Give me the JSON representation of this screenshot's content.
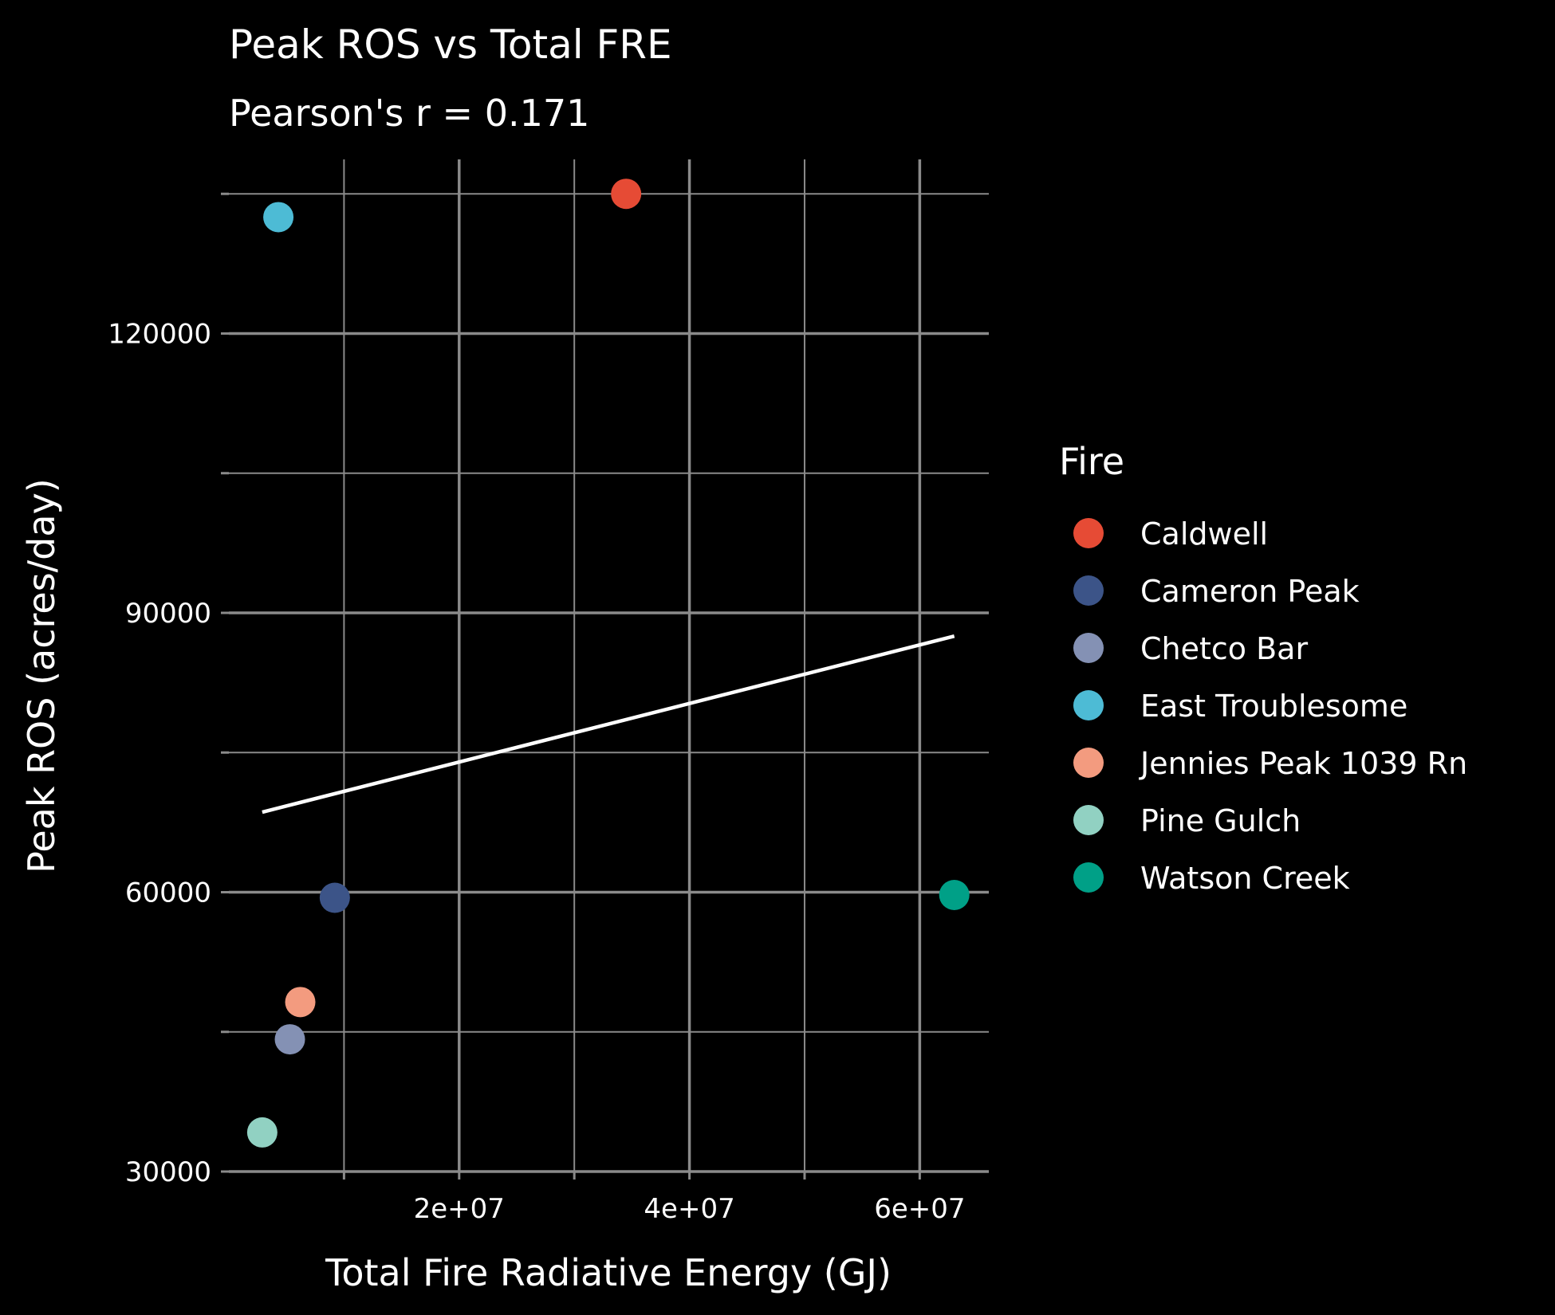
{
  "chart_data": {
    "type": "scatter",
    "title": "Peak ROS vs Total FRE",
    "subtitle": "Pearson's r = 0.171",
    "xlabel": "Total Fire Radiative Energy (GJ)",
    "ylabel": "Peak ROS (acres/day)",
    "xlim": [
      0,
      66000000
    ],
    "ylim": [
      30000,
      135000
    ],
    "x_ticks": [
      20000000,
      40000000,
      60000000
    ],
    "x_tick_labels": [
      "2e+07",
      "4e+07",
      "6e+07"
    ],
    "x_minor_ticks": [
      10000000,
      30000000,
      50000000
    ],
    "y_ticks": [
      30000,
      60000,
      90000,
      120000
    ],
    "y_tick_labels": [
      "30000",
      "60000",
      "90000",
      "120000"
    ],
    "y_minor_ticks": [
      45000,
      75000,
      105000,
      135000
    ],
    "grid": true,
    "legend": {
      "title": "Fire",
      "placement": "right"
    },
    "series": [
      {
        "name": "Caldwell",
        "color": "#E64B35",
        "x": 34500000,
        "y": 135000
      },
      {
        "name": "Cameron Peak",
        "color": "#3C5488",
        "x": 9200000,
        "y": 59400
      },
      {
        "name": "Chetco Bar",
        "color": "#8491B4",
        "x": 5300000,
        "y": 44200
      },
      {
        "name": "East Troublesome",
        "color": "#4DBBD5",
        "x": 4300000,
        "y": 132500
      },
      {
        "name": "Jennies Peak 1039 Rn",
        "color": "#F39B7F",
        "x": 6200000,
        "y": 48200
      },
      {
        "name": "Pine Gulch",
        "color": "#91D1C2",
        "x": 2900000,
        "y": 34200
      },
      {
        "name": "Watson Creek",
        "color": "#00A087",
        "x": 63000000,
        "y": 59700
      }
    ],
    "trend_line": {
      "x": [
        2900000,
        63000000
      ],
      "y": [
        68600,
        87500
      ]
    }
  }
}
